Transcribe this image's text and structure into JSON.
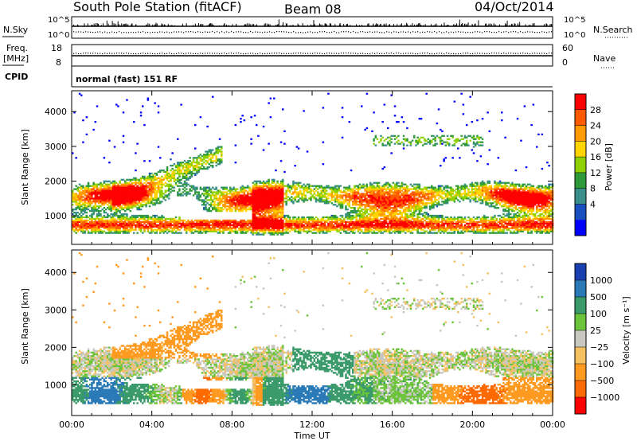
{
  "header": {
    "station": "South Pole Station (fitACF)",
    "beam": "Beam 08",
    "date": "04/Oct/2014"
  },
  "status_panels": {
    "nsky_label": "N.Sky",
    "nsearch_label": "N.Search",
    "nsky_ticks": [
      "10^5",
      "10^0"
    ],
    "freq_label_1": "Freq.",
    "freq_label_2": "[MHz]",
    "freq_ticks": [
      "18",
      "8"
    ],
    "nave_label": "Nave",
    "nave_ticks": [
      "60",
      "0"
    ],
    "cpid_label": "CPID",
    "cpid_value": "normal (fast) 151 RF"
  },
  "chart_data": [
    {
      "type": "heatmap",
      "name": "power",
      "ylabel": "Slant Range [km]",
      "yticks": [
        1000,
        2000,
        3000,
        4000
      ],
      "ylim": [
        180,
        4600
      ],
      "xlim": [
        0,
        24
      ],
      "colorbar": {
        "label": "Power [dB]",
        "ticks": [
          "28",
          "24",
          "20",
          "16",
          "12",
          "8",
          "4"
        ],
        "colors": [
          "#ff0000",
          "#ff5a00",
          "#ff9a00",
          "#ffd400",
          "#8fd000",
          "#2f9a3a",
          "#3a8f8a",
          "#1a4fbf",
          "#0000ff"
        ]
      }
    },
    {
      "type": "heatmap",
      "name": "velocity",
      "ylabel": "Slant Range [km]",
      "yticks": [
        1000,
        2000,
        3000,
        4000
      ],
      "ylim": [
        180,
        4600
      ],
      "xlim": [
        0,
        24
      ],
      "xlabel": "Time UT",
      "xticks": [
        "00:00",
        "04:00",
        "08:00",
        "12:00",
        "16:00",
        "20:00",
        "00:00"
      ],
      "colorbar": {
        "label": "Velocity [m s⁻¹]",
        "ticks": [
          "1000",
          "500",
          "100",
          "25",
          "−25",
          "−100",
          "−500",
          "−1000"
        ],
        "colors": [
          "#1a3fb0",
          "#2a7ab8",
          "#3a9a6a",
          "#6cc43a",
          "#c8c8c0",
          "#f5c060",
          "#ff9a20",
          "#ff6a00",
          "#ff0000"
        ]
      }
    }
  ]
}
